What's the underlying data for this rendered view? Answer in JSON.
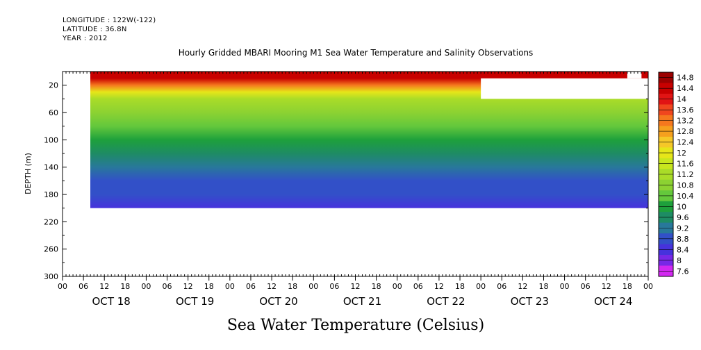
{
  "header": {
    "longitude": "LONGITUDE : 122W(-122)",
    "latitude": "LATITUDE : 36.8N",
    "year": "YEAR : 2012"
  },
  "chart_data": {
    "type": "heatmap",
    "title": "Hourly Gridded MBARI Mooring M1 Sea Water Temperature and Salinity Observations",
    "xlabel": "",
    "ylabel": "DEPTH (m)",
    "colorbar_label": "Sea Water Temperature (Celsius)",
    "ylim": [
      300,
      0
    ],
    "y_ticks": [
      20,
      60,
      100,
      140,
      180,
      220,
      260,
      300
    ],
    "hour_tick_labels": [
      "00",
      "06",
      "12",
      "18",
      "00",
      "06",
      "12",
      "18",
      "00",
      "06",
      "12",
      "18",
      "00",
      "06",
      "12",
      "18",
      "00",
      "06",
      "12",
      "18",
      "00",
      "06",
      "12",
      "18",
      "00",
      "06",
      "12",
      "18",
      "00"
    ],
    "day_labels": [
      "OCT 18",
      "OCT 19",
      "OCT 20",
      "OCT 21",
      "OCT 22",
      "OCT 23",
      "OCT 24"
    ],
    "colorbar_levels": [
      "14.8",
      "14.4",
      "14",
      "13.6",
      "13.2",
      "12.8",
      "12.4",
      "12",
      "11.6",
      "11.2",
      "10.8",
      "10.4",
      "10",
      "9.6",
      "9.2",
      "8.8",
      "8.4",
      "8",
      "7.6"
    ],
    "data_depth_range": [
      0,
      200
    ],
    "depth_profile": [
      {
        "depth": 10,
        "value": 14.5
      },
      {
        "depth": 20,
        "value": 13.2
      },
      {
        "depth": 30,
        "value": 12.0
      },
      {
        "depth": 40,
        "value": 11.3
      },
      {
        "depth": 60,
        "value": 10.8
      },
      {
        "depth": 80,
        "value": 10.5
      },
      {
        "depth": 100,
        "value": 10.0
      },
      {
        "depth": 120,
        "value": 9.7
      },
      {
        "depth": 140,
        "value": 9.3
      },
      {
        "depth": 160,
        "value": 9.0
      },
      {
        "depth": 180,
        "value": 8.8
      },
      {
        "depth": 200,
        "value": 8.6
      }
    ],
    "missing_data": [
      {
        "start_day": 5.0,
        "end_day": 7.0,
        "depth_top": 10,
        "depth_bottom": 40
      },
      {
        "start_day": 6.75,
        "end_day": 6.92,
        "depth_top": 0,
        "depth_bottom": 10
      }
    ]
  },
  "colors": {
    "levels_top_to_bottom": [
      "#9c0000",
      "#c80000",
      "#e11414",
      "#f0461e",
      "#f5781e",
      "#f5a01e",
      "#f5c828",
      "#e6e619",
      "#c8e61e",
      "#aadc28",
      "#8cd232",
      "#64c83c",
      "#1ea03c",
      "#1e8c64",
      "#28789b",
      "#3250c8",
      "#4632dc",
      "#7828e6",
      "#d228f0"
    ]
  }
}
